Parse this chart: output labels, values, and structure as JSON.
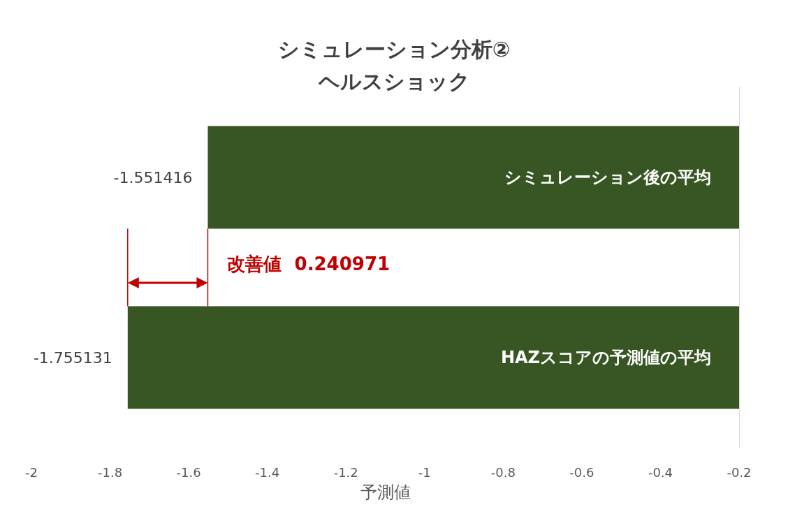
{
  "chart_data": {
    "type": "bar",
    "orientation": "horizontal",
    "title": "シミュレーション分析②\nヘルスショック",
    "xlabel": "予測値",
    "categories": [
      "シミュレーション後の平均",
      "HAZスコアの予測値の平均"
    ],
    "values": [
      -1.551416,
      -1.755131
    ],
    "color": "#375623",
    "data_labels": true,
    "xlim": [
      -2,
      -0.2
    ],
    "xticks": [
      -2,
      -1.8,
      -1.6,
      -1.4,
      -1.2,
      -1,
      -0.8,
      -0.6,
      -0.4,
      -0.2
    ],
    "grid": false,
    "annotations": [
      "改善値  0.240971"
    ]
  }
}
